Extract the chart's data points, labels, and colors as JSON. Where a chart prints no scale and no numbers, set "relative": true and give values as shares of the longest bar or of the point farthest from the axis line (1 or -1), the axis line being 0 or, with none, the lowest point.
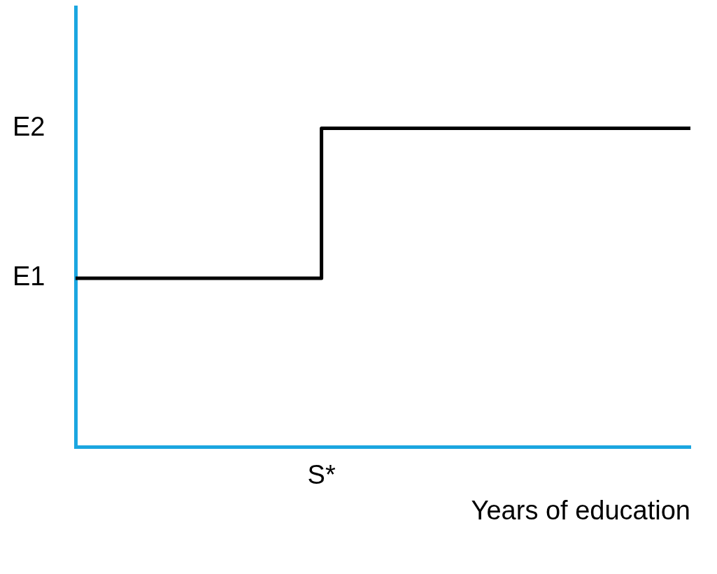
{
  "chart_data": {
    "type": "step",
    "relative": true,
    "xlabel": "Years of education",
    "categories": [
      null,
      null,
      null,
      null,
      null,
      null
    ],
    "series": [
      {
        "color": "#000000",
        "values": [
          0.53,
          0.53,
          1,
          1,
          1,
          1
        ]
      }
    ],
    "annotations": [
      "E1",
      "E2",
      "S*"
    ],
    "legend": false,
    "marker": "none",
    "line_style": "solid"
  }
}
